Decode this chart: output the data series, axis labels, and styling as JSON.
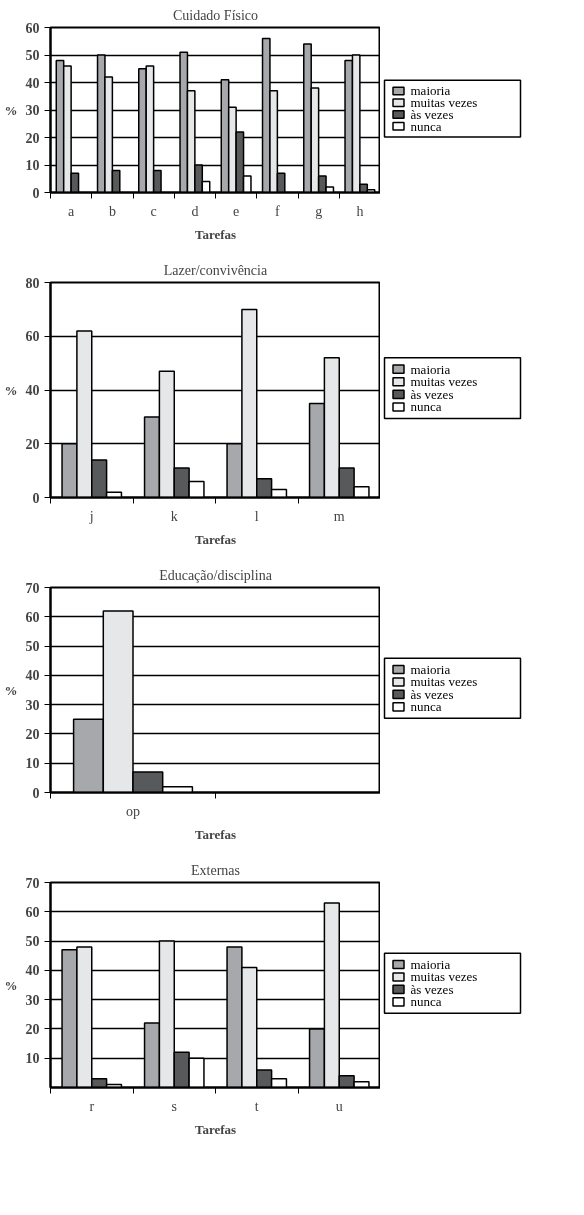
{
  "chart_data": [
    {
      "type": "bar",
      "title": "Cuidado Físico",
      "xlabel": "Tarefas",
      "ylabel": "%",
      "categories": [
        "a",
        "b",
        "c",
        "d",
        "e",
        "f",
        "g",
        "h"
      ],
      "ylim": [
        0,
        60
      ],
      "yticks": [
        0,
        10,
        20,
        30,
        40,
        50,
        60
      ],
      "grid": "y",
      "legend": "right",
      "series": [
        {
          "name": "maioria",
          "color": "#a6a8ab",
          "values": [
            48,
            50,
            45,
            51,
            41,
            56,
            54,
            48
          ]
        },
        {
          "name": "muitas vezes",
          "color": "#e6e7e8",
          "values": [
            46,
            42,
            46,
            37,
            31,
            37,
            38,
            50
          ]
        },
        {
          "name": "às vezes",
          "color": "#58595b",
          "values": [
            7,
            8,
            8,
            10,
            22,
            7,
            6,
            3
          ]
        },
        {
          "name": "nunca",
          "color": "#ffffff",
          "values": [
            null,
            null,
            null,
            4,
            6,
            null,
            2,
            1
          ]
        }
      ]
    },
    {
      "type": "bar",
      "title": "Lazer/convivência",
      "xlabel": "Tarefas",
      "ylabel": "%",
      "categories": [
        "j",
        "k",
        "l",
        "m"
      ],
      "ylim": [
        0,
        80
      ],
      "yticks": [
        0,
        20,
        40,
        60,
        80
      ],
      "grid": "y",
      "legend": "right",
      "series": [
        {
          "name": "maioria",
          "color": "#a6a8ab",
          "values": [
            20,
            30,
            20,
            35
          ]
        },
        {
          "name": "muitas vezes",
          "color": "#e6e7e8",
          "values": [
            62,
            47,
            70,
            52
          ]
        },
        {
          "name": "às vezes",
          "color": "#58595b",
          "values": [
            14,
            11,
            7,
            11
          ]
        },
        {
          "name": "nunca",
          "color": "#ffffff",
          "values": [
            2,
            6,
            3,
            4
          ]
        }
      ]
    },
    {
      "type": "bar",
      "title": "Educação/disciplina",
      "xlabel": "Tarefas",
      "ylabel": "%",
      "categories": [
        "op",
        null
      ],
      "ylim": [
        0,
        70
      ],
      "yticks": [
        0,
        10,
        20,
        30,
        40,
        50,
        60,
        70
      ],
      "grid": "y",
      "legend": "right",
      "series": [
        {
          "name": "maioria",
          "color": "#a6a8ab",
          "values": [
            25,
            null
          ]
        },
        {
          "name": "muitas vezes",
          "color": "#e6e7e8",
          "values": [
            62,
            null
          ]
        },
        {
          "name": "às vezes",
          "color": "#58595b",
          "values": [
            7,
            null
          ]
        },
        {
          "name": "nunca",
          "color": "#ffffff",
          "values": [
            2,
            null
          ]
        }
      ]
    },
    {
      "type": "bar",
      "title": "Externas",
      "xlabel": "Tarefas",
      "ylabel": "%",
      "categories": [
        "r",
        "s",
        "t",
        "u"
      ],
      "ylim": [
        0,
        70
      ],
      "yticks": [
        10,
        20,
        30,
        40,
        50,
        60,
        70
      ],
      "grid": "y",
      "legend": "right",
      "series": [
        {
          "name": "maioria",
          "color": "#a6a8ab",
          "values": [
            47,
            22,
            48,
            20
          ]
        },
        {
          "name": "muitas vezes",
          "color": "#e6e7e8",
          "values": [
            48,
            50,
            41,
            63
          ]
        },
        {
          "name": "às vezes",
          "color": "#58595b",
          "values": [
            3,
            12,
            6,
            4
          ]
        },
        {
          "name": "nunca",
          "color": "#ffffff",
          "values": [
            1,
            10,
            3,
            2
          ]
        }
      ]
    }
  ]
}
